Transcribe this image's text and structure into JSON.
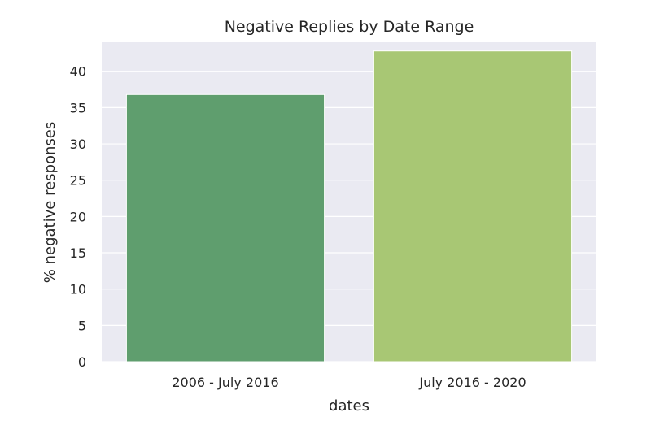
{
  "chart_data": {
    "type": "bar",
    "title": "Negative Replies by Date Range",
    "xlabel": "dates",
    "ylabel": "% negative responses",
    "categories": [
      "2006 - July 2016",
      "July 2016 - 2020"
    ],
    "values": [
      36.8,
      42.8
    ],
    "colors": [
      "#5f9e6e",
      "#a8c774"
    ],
    "ylim": [
      0,
      44
    ],
    "yticks": [
      0,
      5,
      10,
      15,
      20,
      25,
      30,
      35,
      40
    ],
    "grid": true,
    "background": "#eaeaf2"
  }
}
